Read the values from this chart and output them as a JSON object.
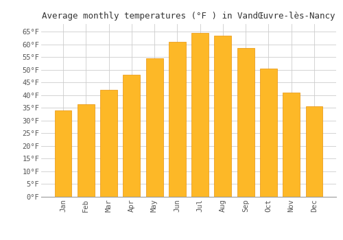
{
  "title": "Average monthly temperatures (°F ) in VandŒuvre-lès-Nancy",
  "months": [
    "Jan",
    "Feb",
    "Mar",
    "Apr",
    "May",
    "Jun",
    "Jul",
    "Aug",
    "Sep",
    "Oct",
    "Nov",
    "Dec"
  ],
  "values": [
    34,
    36.5,
    42,
    48,
    54.5,
    61,
    64.5,
    63.5,
    58.5,
    50.5,
    41,
    35.5
  ],
  "bar_color": "#FDB827",
  "bar_edge_color": "#E8930A",
  "background_color": "#FFFFFF",
  "grid_color": "#CCCCCC",
  "text_color": "#555555",
  "ylim": [
    0,
    68
  ],
  "yticks": [
    0,
    5,
    10,
    15,
    20,
    25,
    30,
    35,
    40,
    45,
    50,
    55,
    60,
    65
  ],
  "ytick_labels": [
    "0°F",
    "5°F",
    "10°F",
    "15°F",
    "20°F",
    "25°F",
    "30°F",
    "35°F",
    "40°F",
    "45°F",
    "50°F",
    "55°F",
    "60°F",
    "65°F"
  ],
  "title_fontsize": 9,
  "tick_fontsize": 7.5,
  "font_family": "monospace"
}
